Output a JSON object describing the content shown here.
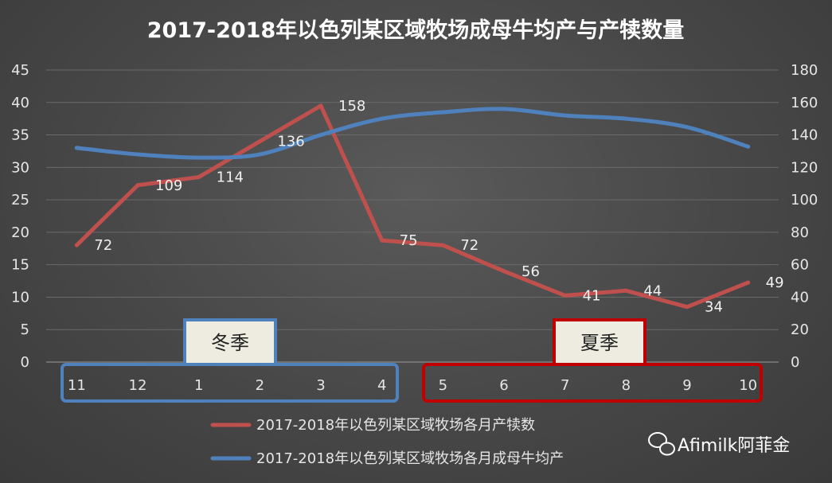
{
  "chart_data": {
    "type": "line",
    "title": "2017-2018年以色列某区域牧场成母牛均产与产犊数量",
    "categories": [
      "11",
      "12",
      "1",
      "2",
      "3",
      "4",
      "5",
      "6",
      "7",
      "8",
      "9",
      "10"
    ],
    "y_left": {
      "ticks": [
        "0",
        "5",
        "10",
        "15",
        "20",
        "25",
        "30",
        "35",
        "40",
        "45"
      ],
      "ylim": [
        0,
        45
      ]
    },
    "y_right": {
      "ticks": [
        "0",
        "20",
        "40",
        "60",
        "80",
        "100",
        "120",
        "140",
        "160",
        "180"
      ],
      "ylim": [
        0,
        180
      ]
    },
    "series": [
      {
        "name": "2017-2018年以色列某区域牧场各月产犊数",
        "axis": "right",
        "color": "#c0504d",
        "values": [
          72,
          109,
          114,
          136,
          158,
          75,
          72,
          56,
          41,
          44,
          34,
          49
        ],
        "labels": [
          "72",
          "109",
          "114",
          "136",
          "158",
          "75",
          "72",
          "56",
          "41",
          "44",
          "34",
          "49"
        ]
      },
      {
        "name": "2017-2018年以色列某区域牧场各月成母牛均产",
        "axis": "left",
        "color": "#4f81bd",
        "values": [
          33.0,
          32.0,
          31.5,
          32.0,
          35.0,
          37.5,
          38.5,
          39.0,
          38.0,
          37.5,
          36.2,
          33.2
        ]
      }
    ],
    "grid": true,
    "legend": "bottom",
    "annotations": [
      {
        "text": "冬季",
        "color": "#4f81bd"
      },
      {
        "text": "夏季",
        "color": "#c00000"
      }
    ]
  },
  "watermark": {
    "text": "Afimilk阿菲金",
    "icon": "wechat-icon"
  }
}
